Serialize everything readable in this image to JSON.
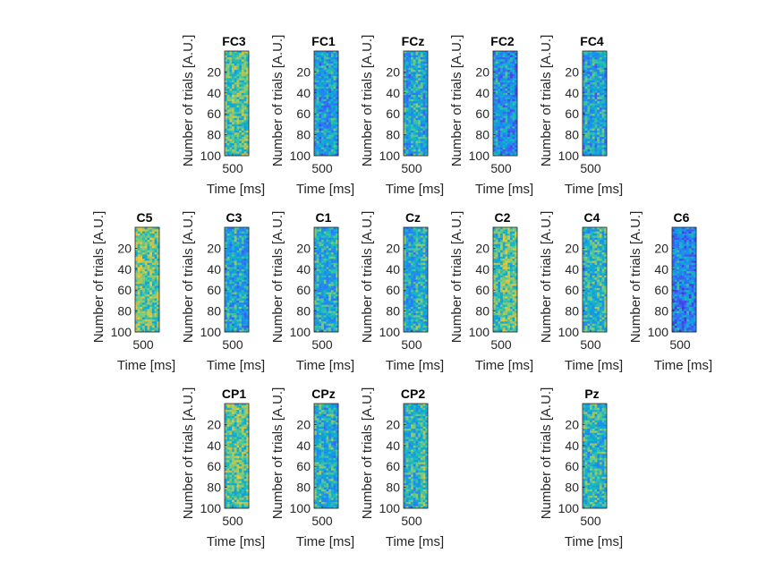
{
  "chart_data": {
    "type": "heatmap",
    "colormap": "parula",
    "layout_rows": [
      [
        "FC3",
        "FC1",
        "FCz",
        "FC2",
        "FC4"
      ],
      [
        "C5",
        "C3",
        "C1",
        "Cz",
        "C2",
        "C4",
        "C6"
      ],
      [
        "CP1",
        "CPz",
        "CP2",
        "Pz"
      ]
    ],
    "xlabel": "Time [ms]",
    "ylabel": "Number of trials [A.U.]",
    "x_ticks": [
      500
    ],
    "y_ticks": [
      20,
      40,
      60,
      80,
      100
    ],
    "ylim": [
      0,
      100
    ],
    "panels": [
      {
        "name": "FC3",
        "title": "FC3",
        "mean_level": 0.55
      },
      {
        "name": "FC1",
        "title": "FC1",
        "mean_level": 0.38
      },
      {
        "name": "FCz",
        "title": "FCz",
        "mean_level": 0.42
      },
      {
        "name": "FC2",
        "title": "FC2",
        "mean_level": 0.36
      },
      {
        "name": "FC4",
        "title": "FC4",
        "mean_level": 0.4
      },
      {
        "name": "C5",
        "title": "C5",
        "mean_level": 0.6
      },
      {
        "name": "C3",
        "title": "C3",
        "mean_level": 0.42
      },
      {
        "name": "C1",
        "title": "C1",
        "mean_level": 0.44
      },
      {
        "name": "Cz",
        "title": "Cz",
        "mean_level": 0.45
      },
      {
        "name": "C2",
        "title": "C2",
        "mean_level": 0.58
      },
      {
        "name": "C4",
        "title": "C4",
        "mean_level": 0.48
      },
      {
        "name": "C6",
        "title": "C6",
        "mean_level": 0.3
      },
      {
        "name": "CP1",
        "title": "CP1",
        "mean_level": 0.58
      },
      {
        "name": "CPz",
        "title": "CPz",
        "mean_level": 0.45
      },
      {
        "name": "CP2",
        "title": "CP2",
        "mean_level": 0.5
      },
      {
        "name": "Pz",
        "title": "Pz",
        "mean_level": 0.46
      }
    ]
  }
}
